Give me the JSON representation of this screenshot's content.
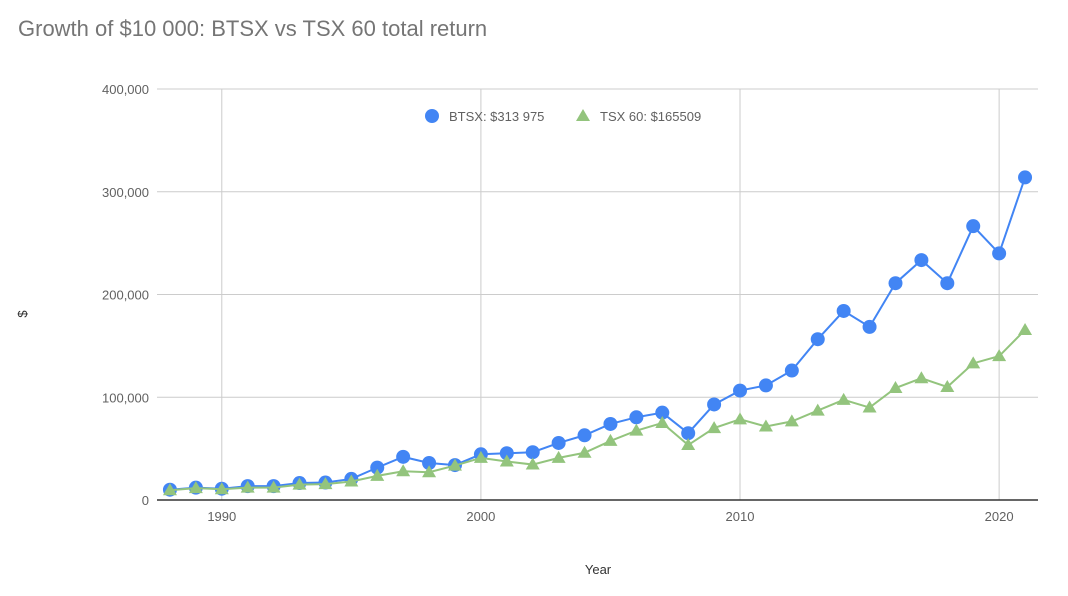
{
  "chart_data": {
    "type": "line",
    "title": "Growth of $10 000: BTSX vs TSX 60 total return",
    "xlabel": "Year",
    "ylabel": "$",
    "xlim": [
      1987.5,
      2021.5
    ],
    "ylim": [
      0,
      400000
    ],
    "x_ticks": [
      1990,
      2000,
      2010,
      2020
    ],
    "y_ticks": [
      0,
      100000,
      200000,
      300000,
      400000
    ],
    "y_tick_labels": [
      "0",
      "100,000",
      "200,000",
      "300,000",
      "400,000"
    ],
    "grid": true,
    "legend_position": "top-center",
    "x": [
      1988,
      1989,
      1990,
      1991,
      1992,
      1993,
      1994,
      1995,
      1996,
      1997,
      1998,
      1999,
      2000,
      2001,
      2002,
      2003,
      2004,
      2005,
      2006,
      2007,
      2008,
      2009,
      2010,
      2011,
      2012,
      2013,
      2014,
      2015,
      2016,
      2017,
      2018,
      2019,
      2020,
      2021
    ],
    "series": [
      {
        "name": "BTSX: $313 975",
        "color": "#4285F4",
        "marker": "circle",
        "values": [
          10000,
          12000,
          11000,
          13500,
          13500,
          16500,
          17000,
          20500,
          31500,
          42000,
          36000,
          34000,
          44500,
          45500,
          46500,
          55500,
          63000,
          74000,
          80500,
          85000,
          65000,
          93000,
          106500,
          111500,
          126000,
          156500,
          184000,
          168500,
          211000,
          233500,
          211000,
          266500,
          240000,
          313975
        ]
      },
      {
        "name": "TSX 60: $165509",
        "color": "#93C47D",
        "marker": "triangle",
        "values": [
          9500,
          11500,
          10500,
          12000,
          12000,
          15000,
          15500,
          18000,
          23500,
          28000,
          27000,
          33500,
          41000,
          37500,
          34500,
          41000,
          46000,
          57500,
          67500,
          75000,
          53500,
          70000,
          78500,
          71500,
          76500,
          87000,
          97500,
          90000,
          109000,
          118500,
          110000,
          133000,
          140000,
          165509
        ]
      }
    ]
  }
}
